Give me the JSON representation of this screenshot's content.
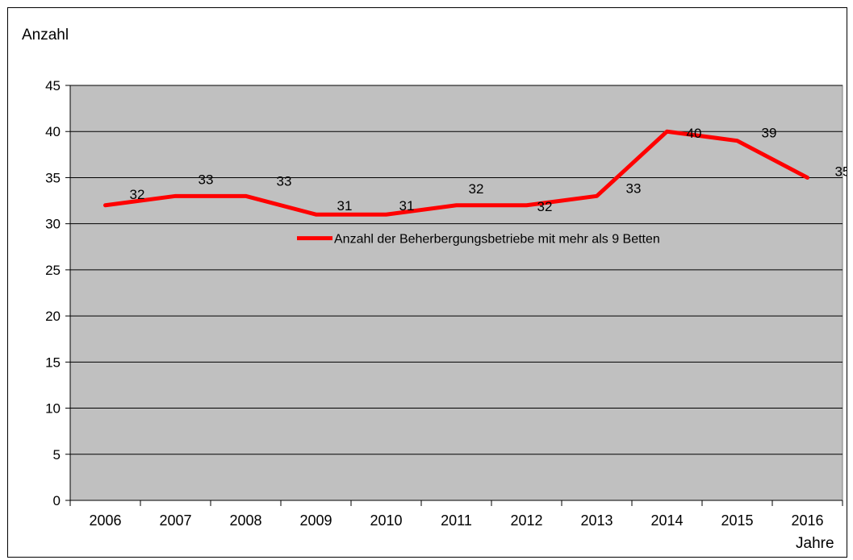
{
  "chart_data": {
    "type": "line",
    "ylabel": "Anzahl",
    "xlabel": "Jahre",
    "categories": [
      "2006",
      "2007",
      "2008",
      "2009",
      "2010",
      "2011",
      "2012",
      "2013",
      "2014",
      "2015",
      "2016"
    ],
    "series": [
      {
        "name": "Anzahl der Beherbergungsbetriebe mit mehr als 9 Betten",
        "values": [
          32,
          33,
          33,
          31,
          31,
          32,
          32,
          33,
          40,
          39,
          35
        ],
        "color": "#ff0000"
      }
    ],
    "ylim": [
      0,
      45
    ],
    "yticks": [
      0,
      5,
      10,
      15,
      20,
      25,
      30,
      35,
      40,
      45
    ],
    "grid": true,
    "legend_position": "inside-top-right",
    "plot_background": "#c0c0c0"
  }
}
